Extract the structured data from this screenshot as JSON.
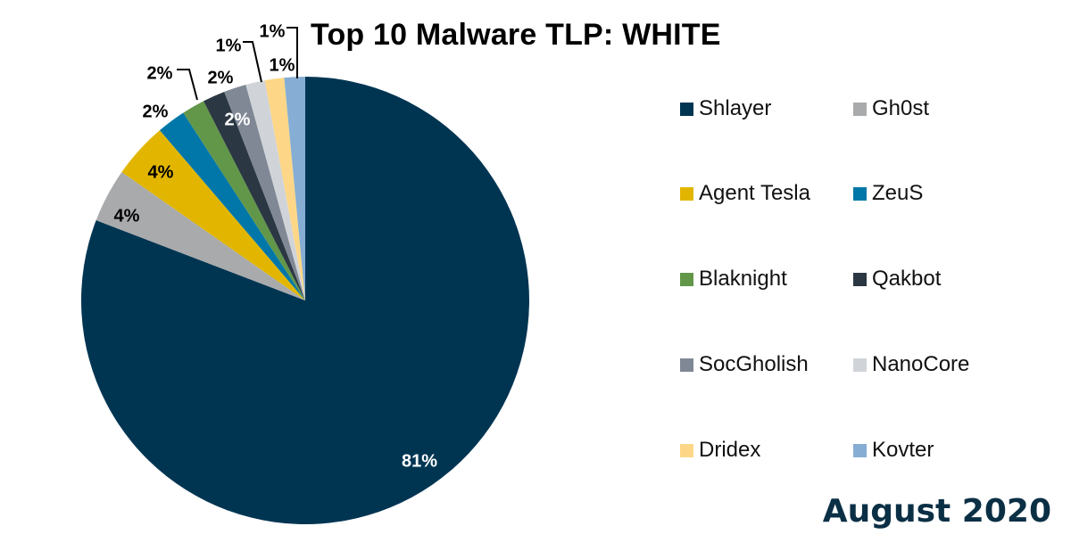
{
  "title": "Top 10 Malware TLP: WHITE",
  "footer": "August 2020",
  "chart_data": {
    "type": "pie",
    "title": "Top 10 Malware TLP: WHITE",
    "subtitle": "August 2020",
    "legend_position": "right",
    "categories": [
      "Shlayer",
      "Gh0st",
      "Agent Tesla",
      "ZeuS",
      "Blaknight",
      "Qakbot",
      "SocGholish",
      "NanoCore",
      "Dridex",
      "Kovter"
    ],
    "values": [
      81,
      4,
      4,
      2,
      2,
      2,
      2,
      1,
      1,
      1
    ],
    "labels": [
      "81%",
      "4%",
      "4%",
      "2%",
      "2%",
      "2%",
      "2%",
      "1%",
      "1%",
      "1%"
    ],
    "colors": [
      "#003552",
      "#a9aaac",
      "#e2b600",
      "#0077a8",
      "#62974a",
      "#2b3742",
      "#7f8894",
      "#d0d4d9",
      "#fdd787",
      "#86aed4"
    ],
    "start_angle": "12 o'clock, clockwise"
  },
  "legend": [
    {
      "label": "Shlayer",
      "color": "#003552"
    },
    {
      "label": "Gh0st",
      "color": "#a9aaac"
    },
    {
      "label": "Agent Tesla",
      "color": "#e2b600"
    },
    {
      "label": "ZeuS",
      "color": "#0077a8"
    },
    {
      "label": "Blaknight",
      "color": "#62974a"
    },
    {
      "label": "Qakbot",
      "color": "#2b3742"
    },
    {
      "label": "SocGholish",
      "color": "#7f8894"
    },
    {
      "label": "NanoCore",
      "color": "#d0d4d9"
    },
    {
      "label": "Dridex",
      "color": "#fdd787"
    },
    {
      "label": "Kovter",
      "color": "#86aed4"
    }
  ]
}
